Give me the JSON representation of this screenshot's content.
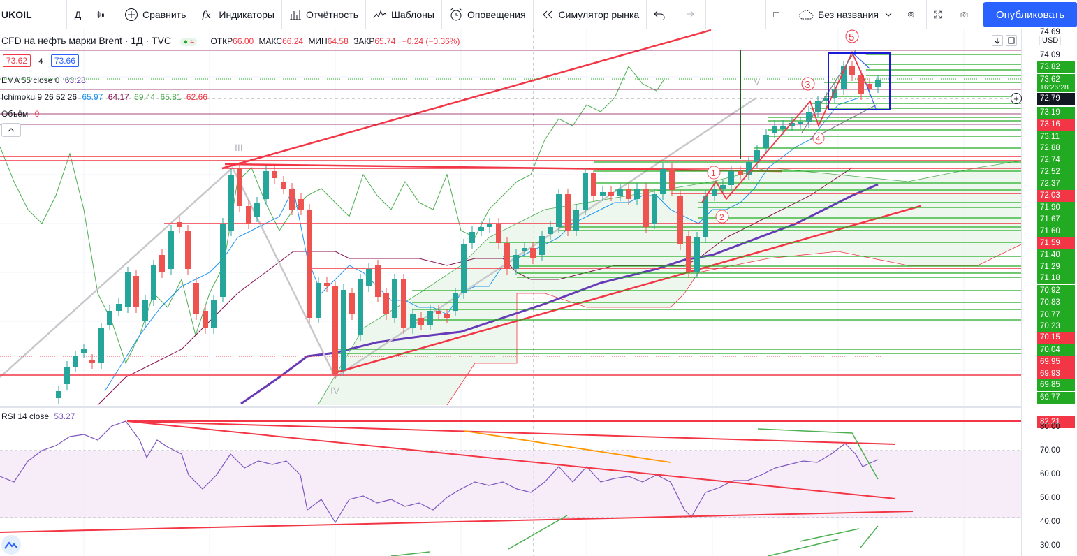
{
  "toolbar": {
    "symbol": "UKOIL",
    "interval": "Д",
    "compare": "Сравнить",
    "indicators": "Индикаторы",
    "financials": "Отчётность",
    "templates": "Шаблоны",
    "alerts": "Оповещения",
    "replay": "Симулятор рынка",
    "layout_name": "Без названия",
    "publish": "Опубликовать"
  },
  "legend": {
    "title": "CFD на нефть марки Brent · 1Д · TVC",
    "open_label": "ОТКР",
    "open": "66.00",
    "high_label": "МАКС",
    "high": "66.24",
    "low_label": "МИН",
    "low": "64.58",
    "close_label": "ЗАКР",
    "close": "65.74",
    "change": "−0.24 (−0.36%)",
    "bid": "73.62",
    "spread": "4",
    "ask": "73.66",
    "ema_label": "EMA 55 close 0",
    "ema_value": "63.28",
    "ichimoku_label": "Ichimoku 9 26 52 26",
    "ichimoku_values": [
      "65.97",
      "64.17",
      "69.44",
      "65.81",
      "62.66"
    ],
    "ichimoku_colors": [
      "#2196f3",
      "#880e4f",
      "#4caf50",
      "#4caf50",
      "#f23645"
    ],
    "volume_label": "Объём",
    "volume_value": "0",
    "rsi_label": "RSI 14 close",
    "rsi_value": "53.27"
  },
  "price_axis": {
    "currency": "USD",
    "labels": [
      {
        "v": "74.69",
        "kind": "plain"
      },
      {
        "v": "74.09",
        "kind": "plain"
      },
      {
        "v": "73.82",
        "kind": "g"
      },
      {
        "v": "73.62",
        "kind": "g"
      },
      {
        "v": "16:26:28",
        "kind": "g"
      },
      {
        "v": "72.79",
        "kind": "dark"
      },
      {
        "v": "73.19",
        "kind": "g"
      },
      {
        "v": "73.16",
        "kind": "r"
      },
      {
        "v": "73.11",
        "kind": "g"
      },
      {
        "v": "72.88",
        "kind": "g"
      },
      {
        "v": "72.74",
        "kind": "g"
      },
      {
        "v": "72.52",
        "kind": "g"
      },
      {
        "v": "72.37",
        "kind": "g"
      },
      {
        "v": "72.03",
        "kind": "r"
      },
      {
        "v": "71.90",
        "kind": "g"
      },
      {
        "v": "71.67",
        "kind": "g"
      },
      {
        "v": "71.60",
        "kind": "g"
      },
      {
        "v": "71.59",
        "kind": "r"
      },
      {
        "v": "71.40",
        "kind": "g"
      },
      {
        "v": "71.29",
        "kind": "g"
      },
      {
        "v": "71.18",
        "kind": "g"
      },
      {
        "v": "70.92",
        "kind": "g"
      },
      {
        "v": "70.83",
        "kind": "g"
      },
      {
        "v": "70.77",
        "kind": "g"
      },
      {
        "v": "70.23",
        "kind": "g"
      },
      {
        "v": "70.15",
        "kind": "r"
      },
      {
        "v": "70.04",
        "kind": "g"
      },
      {
        "v": "69.95",
        "kind": "r"
      },
      {
        "v": "69.93",
        "kind": "r"
      },
      {
        "v": "69.85",
        "kind": "g"
      },
      {
        "v": "69.77",
        "kind": "g"
      }
    ]
  },
  "rsi_axis": {
    "labels": [
      "82.21",
      "80.00",
      "70.00",
      "60.00",
      "50.00",
      "40.00",
      "30.00"
    ]
  },
  "wave_labels": [
    "5",
    "3",
    "1",
    "2",
    "4",
    "III",
    "IV",
    "V"
  ]
}
